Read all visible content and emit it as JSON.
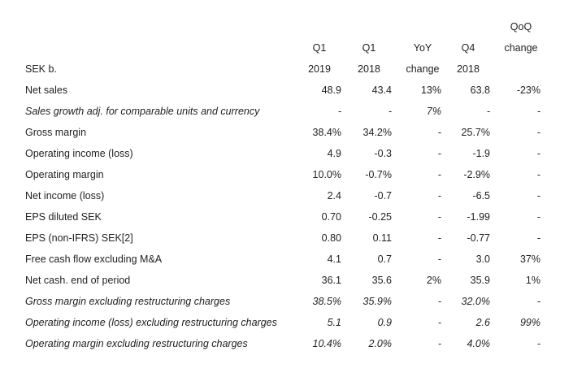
{
  "header": {
    "row1": {
      "c5": "QoQ"
    },
    "row2": {
      "c1": "Q1",
      "c2": "Q1",
      "c3": "YoY",
      "c4": "Q4",
      "c5": "change"
    },
    "row3": {
      "label": "SEK b.",
      "c1": "2019",
      "c2": "2018",
      "c3": "change",
      "c4": "2018"
    }
  },
  "rows": [
    {
      "label": "Net sales",
      "italic": false,
      "values": [
        "48.9",
        "43.4",
        "13%",
        "63.8",
        "-23%"
      ]
    },
    {
      "label": "Sales growth adj. for comparable units and currency",
      "italic": true,
      "values": [
        "-",
        "-",
        "7%",
        "-",
        "-"
      ]
    },
    {
      "label": "Gross margin",
      "italic": false,
      "values": [
        "38.4%",
        "34.2%",
        "-",
        "25.7%",
        "-"
      ]
    },
    {
      "label": "Operating income (loss)",
      "italic": false,
      "values": [
        "4.9",
        "-0.3",
        "-",
        "-1.9",
        "-"
      ]
    },
    {
      "label": "Operating margin",
      "italic": false,
      "values": [
        "10.0%",
        "-0.7%",
        "-",
        "-2.9%",
        "-"
      ]
    },
    {
      "label": "Net income (loss)",
      "italic": false,
      "values": [
        "2.4",
        "-0.7",
        "-",
        "-6.5",
        "-"
      ]
    },
    {
      "label": "EPS diluted SEK",
      "italic": false,
      "values": [
        "0.70",
        "-0.25",
        "-",
        "-1.99",
        "-"
      ]
    },
    {
      "label": "EPS (non-IFRS) SEK[2]",
      "italic": false,
      "values": [
        "0.80",
        "0.11",
        "-",
        "-0.77",
        "-"
      ]
    },
    {
      "label": "Free cash flow excluding M&A",
      "italic": false,
      "values": [
        "4.1",
        "0.7",
        "-",
        "3.0",
        "37%"
      ]
    },
    {
      "label": "Net cash. end of period",
      "italic": false,
      "values": [
        "36.1",
        "35.6",
        "2%",
        "35.9",
        "1%"
      ]
    },
    {
      "label": "Gross margin excluding restructuring charges",
      "italic": true,
      "values": [
        "38.5%",
        "35.9%",
        "-",
        "32.0%",
        "-"
      ]
    },
    {
      "label": "Operating income (loss) excluding restructuring charges",
      "italic": true,
      "values": [
        "5.1",
        "0.9",
        "-",
        "2.6",
        "99%"
      ]
    },
    {
      "label": "Operating margin excluding restructuring charges",
      "italic": true,
      "values": [
        "10.4%",
        "2.0%",
        "-",
        "4.0%",
        "-"
      ]
    }
  ]
}
